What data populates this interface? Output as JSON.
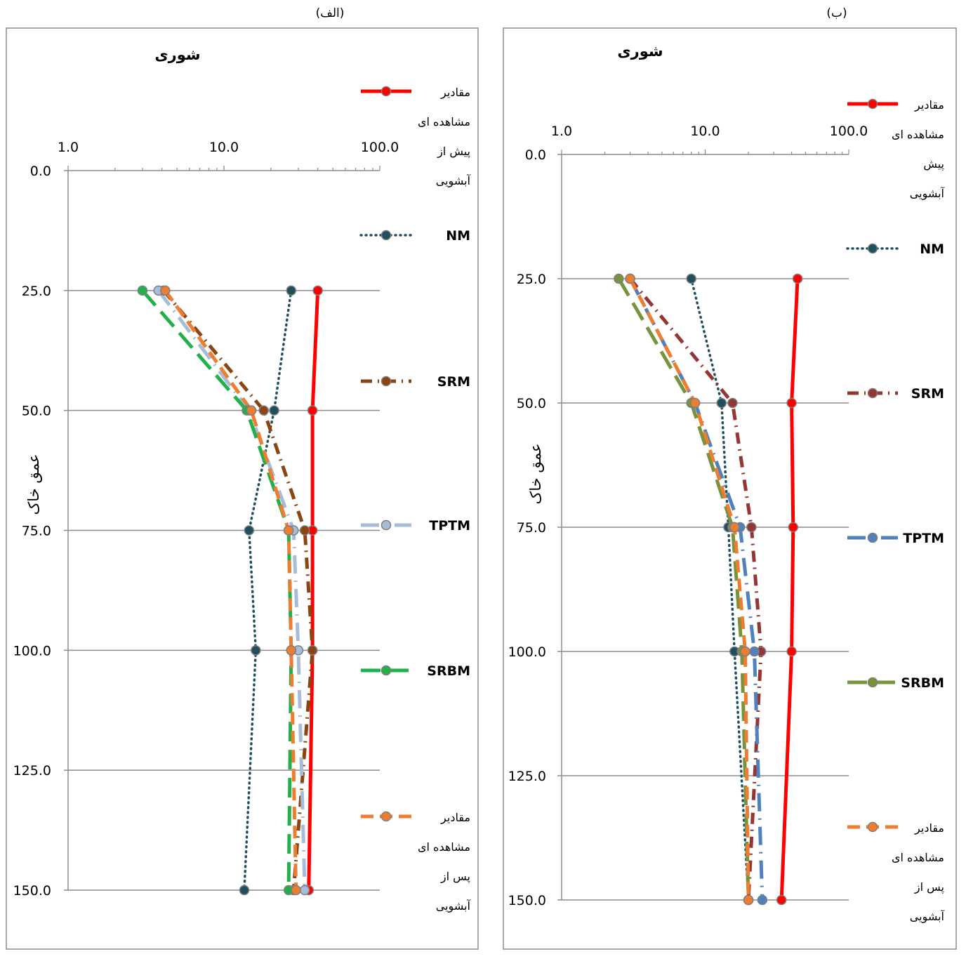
{
  "chart_data": [
    {
      "type": "line",
      "panel_label": "(الف)",
      "title": "شوری",
      "ylabel": "عمق خاک",
      "x_scale": "log",
      "xlim": [
        1,
        100
      ],
      "x_ticks": [
        "1.0",
        "10.0",
        "100.0"
      ],
      "ylim": [
        0,
        150
      ],
      "y_inverted": true,
      "y_ticks": [
        "0.0",
        "25.0",
        "50.0",
        "75.0",
        "100.0",
        "125.0",
        "150.0"
      ],
      "gridlines": "horizontal",
      "legend_position": "right",
      "depths": [
        25,
        50,
        75,
        100,
        150
      ],
      "series": [
        {
          "name": "مقادیر مشاهده ای پیش از آبشویی",
          "legend_lines": [
            "مقادیر",
            "مشاهده ای",
            "پیش از",
            "آبشویی"
          ],
          "values": [
            40,
            37,
            37,
            37,
            35
          ],
          "color": "#ff0000"
        },
        {
          "name": "NM",
          "legend_lines": [
            "NM"
          ],
          "values": [
            27,
            21,
            14.5,
            16,
            13.5
          ],
          "color": "#1f4e5f"
        },
        {
          "name": "SRM",
          "legend_lines": [
            "SRM"
          ],
          "values": [
            4.1,
            18,
            33,
            37,
            28
          ],
          "color": "#8b4513"
        },
        {
          "name": "TPTM",
          "legend_lines": [
            "TPTM"
          ],
          "values": [
            3.8,
            14.5,
            28,
            30,
            33
          ],
          "color": "#a6bcd8"
        },
        {
          "name": "SRBM",
          "legend_lines": [
            "SRBM"
          ],
          "values": [
            3,
            14,
            26,
            27,
            26
          ],
          "color": "#22b04b"
        },
        {
          "name": "مقادیر مشاهده ای پس از آبشویی",
          "legend_lines": [
            "مقادیر",
            "مشاهده ای",
            "پس از",
            "آبشویی"
          ],
          "values": [
            4.2,
            15,
            26,
            27,
            29
          ],
          "color": "#ed7d31"
        }
      ]
    },
    {
      "type": "line",
      "panel_label": "(ب)",
      "title": "شوری",
      "ylabel": "عمق خاک",
      "x_scale": "log",
      "xlim": [
        1,
        100
      ],
      "x_ticks": [
        "1.0",
        "10.0",
        "100.0"
      ],
      "ylim": [
        0,
        150
      ],
      "y_inverted": true,
      "y_ticks": [
        "0.0",
        "25.0",
        "50.0",
        "75.0",
        "100.0",
        "125.0",
        "150.0"
      ],
      "gridlines": "horizontal",
      "legend_position": "right",
      "depths": [
        25,
        50,
        75,
        100,
        150
      ],
      "series": [
        {
          "name": "مقادیر مشاهده ای پیش آبشویی",
          "legend_lines": [
            "مقادیر",
            "مشاهده ای",
            "پیش",
            "آبشویی"
          ],
          "values": [
            44,
            40,
            41,
            40,
            34
          ],
          "color": "#ff0000"
        },
        {
          "name": "NM",
          "legend_lines": [
            "NM"
          ],
          "values": [
            8,
            13,
            14.5,
            16,
            20
          ],
          "color": "#1f4e5f"
        },
        {
          "name": "SRM",
          "legend_lines": [
            "SRM"
          ],
          "values": [
            3,
            15.5,
            21,
            24.5,
            20
          ],
          "color": "#943634"
        },
        {
          "name": "TPTM",
          "legend_lines": [
            "TPTM"
          ],
          "values": [
            3,
            8.5,
            17.5,
            22,
            25
          ],
          "color": "#4f81bd"
        },
        {
          "name": "SRBM",
          "legend_lines": [
            "SRBM"
          ],
          "values": [
            2.5,
            8,
            15.5,
            18,
            20
          ],
          "color": "#77933c"
        },
        {
          "name": "مقادیر مشاهده ای پس از آبشویی",
          "legend_lines": [
            "مقادیر",
            "مشاهده ای",
            "پس از",
            "آبشویی"
          ],
          "values": [
            3,
            8.5,
            16,
            19,
            20
          ],
          "color": "#ed7d31"
        }
      ]
    }
  ]
}
